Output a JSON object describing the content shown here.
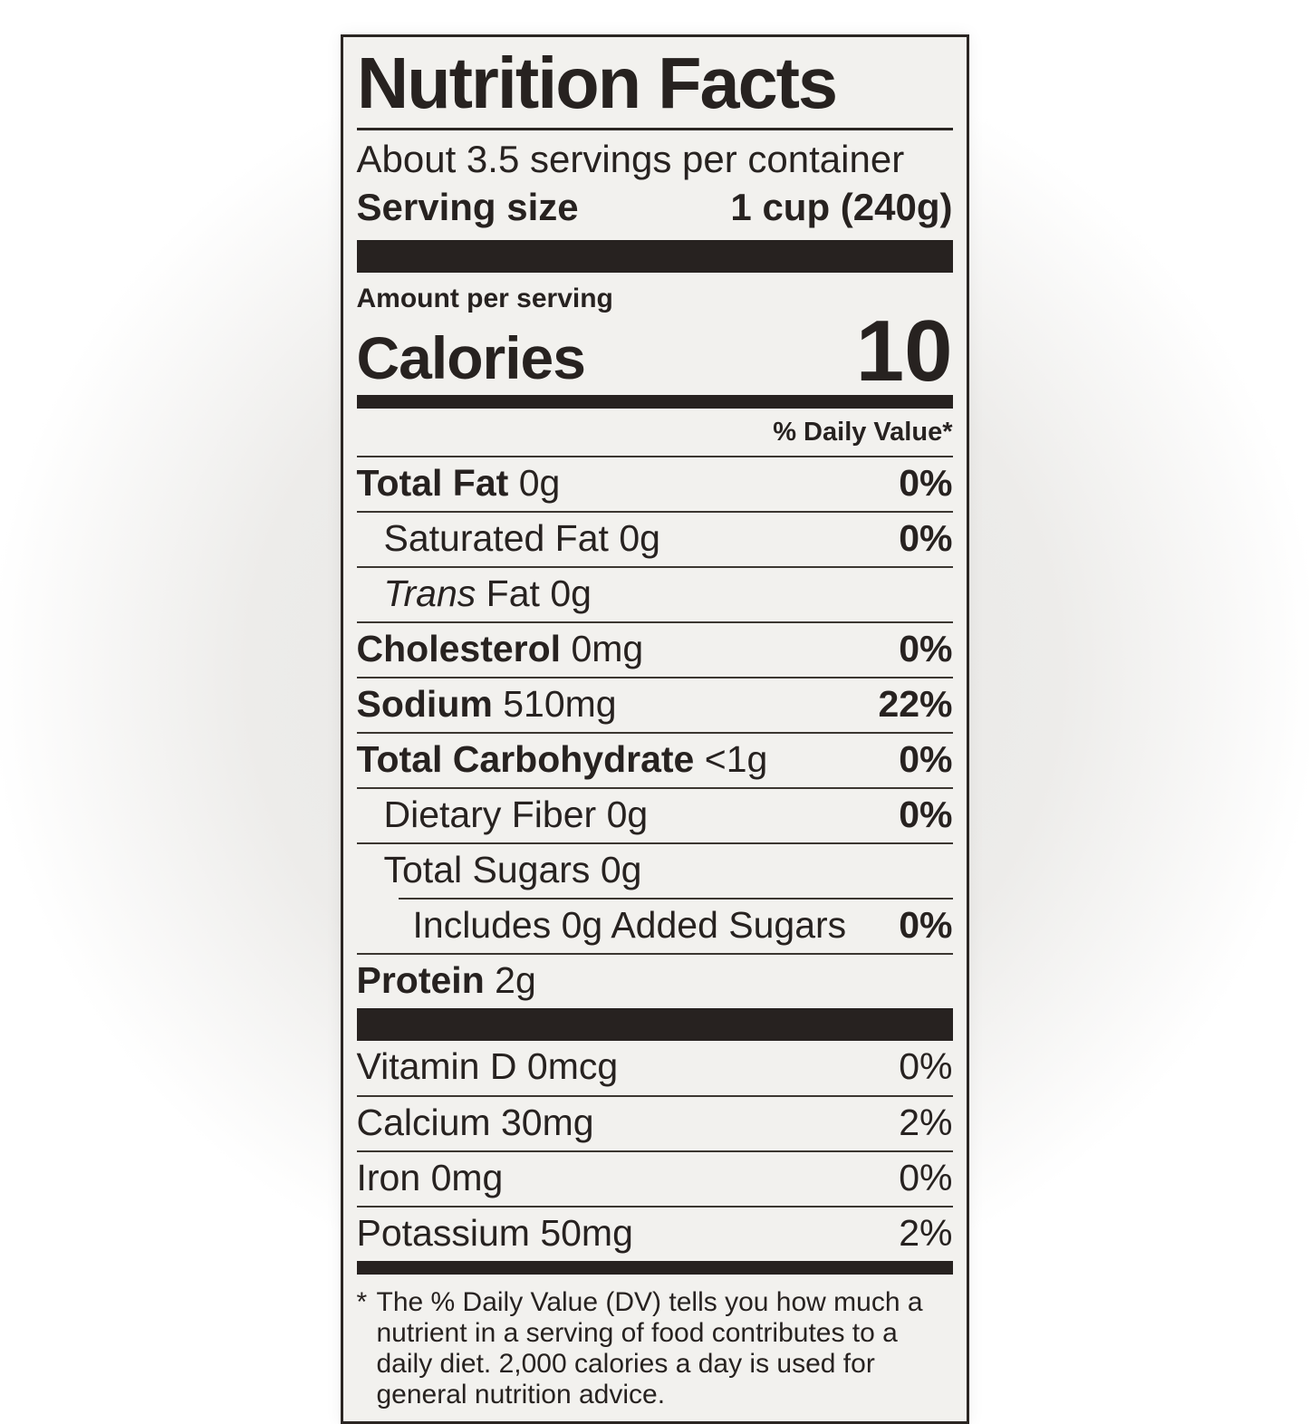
{
  "label": {
    "title": "Nutrition Facts",
    "servings_per_container": "About 3.5 servings per container",
    "serving_size": {
      "label": "Serving size",
      "value": "1 cup (240g)"
    },
    "amount_per_serving": "Amount per serving",
    "calories": {
      "label": "Calories",
      "value": "10"
    },
    "daily_value_header": "% Daily Value*",
    "nutrients": [
      {
        "name": "Total Fat",
        "amount": "0g",
        "pct": "0%"
      },
      {
        "name": "Saturated Fat",
        "amount": "0g",
        "pct": "0%"
      },
      {
        "name_italic": "Trans",
        "name": "Fat",
        "amount": "0g",
        "pct": ""
      },
      {
        "name": "Cholesterol",
        "amount": "0mg",
        "pct": "0%"
      },
      {
        "name": "Sodium",
        "amount": "510mg",
        "pct": "22%"
      },
      {
        "name": "Total Carbohydrate",
        "amount": "<1g",
        "pct": "0%"
      },
      {
        "name": "Dietary Fiber",
        "amount": "0g",
        "pct": "0%"
      },
      {
        "name": "Total Sugars",
        "amount": "0g",
        "pct": ""
      },
      {
        "name": "Includes 0g Added Sugars",
        "amount": "",
        "pct": "0%"
      },
      {
        "name": "Protein",
        "amount": "2g",
        "pct": ""
      }
    ],
    "micronutrients": [
      {
        "name": "Vitamin D",
        "amount": "0mcg",
        "pct": "0%"
      },
      {
        "name": "Calcium",
        "amount": "30mg",
        "pct": "2%"
      },
      {
        "name": "Iron",
        "amount": "0mg",
        "pct": "0%"
      },
      {
        "name": "Potassium",
        "amount": "50mg",
        "pct": "2%"
      }
    ],
    "footnote_marker": "*",
    "footnote": "The % Daily Value (DV) tells you how much a nutrient in a serving of food contributes to a daily diet. 2,000 calories a day is used for general nutrition advice.",
    "colors": {
      "ink": "#272220",
      "panel": "#f2f1ee"
    }
  }
}
